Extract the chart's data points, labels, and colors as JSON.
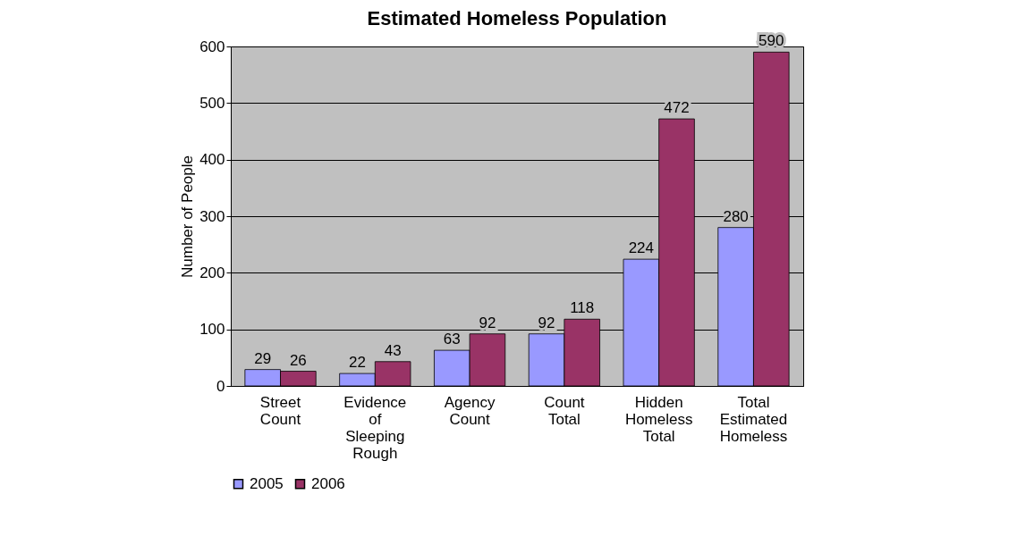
{
  "chart_data": {
    "type": "bar",
    "title": "Estimated Homeless Population",
    "ylabel": "Number of People",
    "categories": [
      "Street Count",
      "Evidence of Sleeping Rough",
      "Agency Count",
      "Count Total",
      "Hidden Homeless Total",
      "Total Estimated Homeless"
    ],
    "series": [
      {
        "name": "2005",
        "color": "#9999ff",
        "values": [
          29,
          22,
          63,
          92,
          224,
          280
        ]
      },
      {
        "name": "2006",
        "color": "#993366",
        "values": [
          26,
          43,
          92,
          118,
          472,
          590
        ]
      }
    ],
    "ylim": [
      0,
      600
    ],
    "yticks": [
      0,
      100,
      200,
      300,
      400,
      500,
      600
    ],
    "grid": "y",
    "legend": "bottom",
    "data_labels": true
  }
}
